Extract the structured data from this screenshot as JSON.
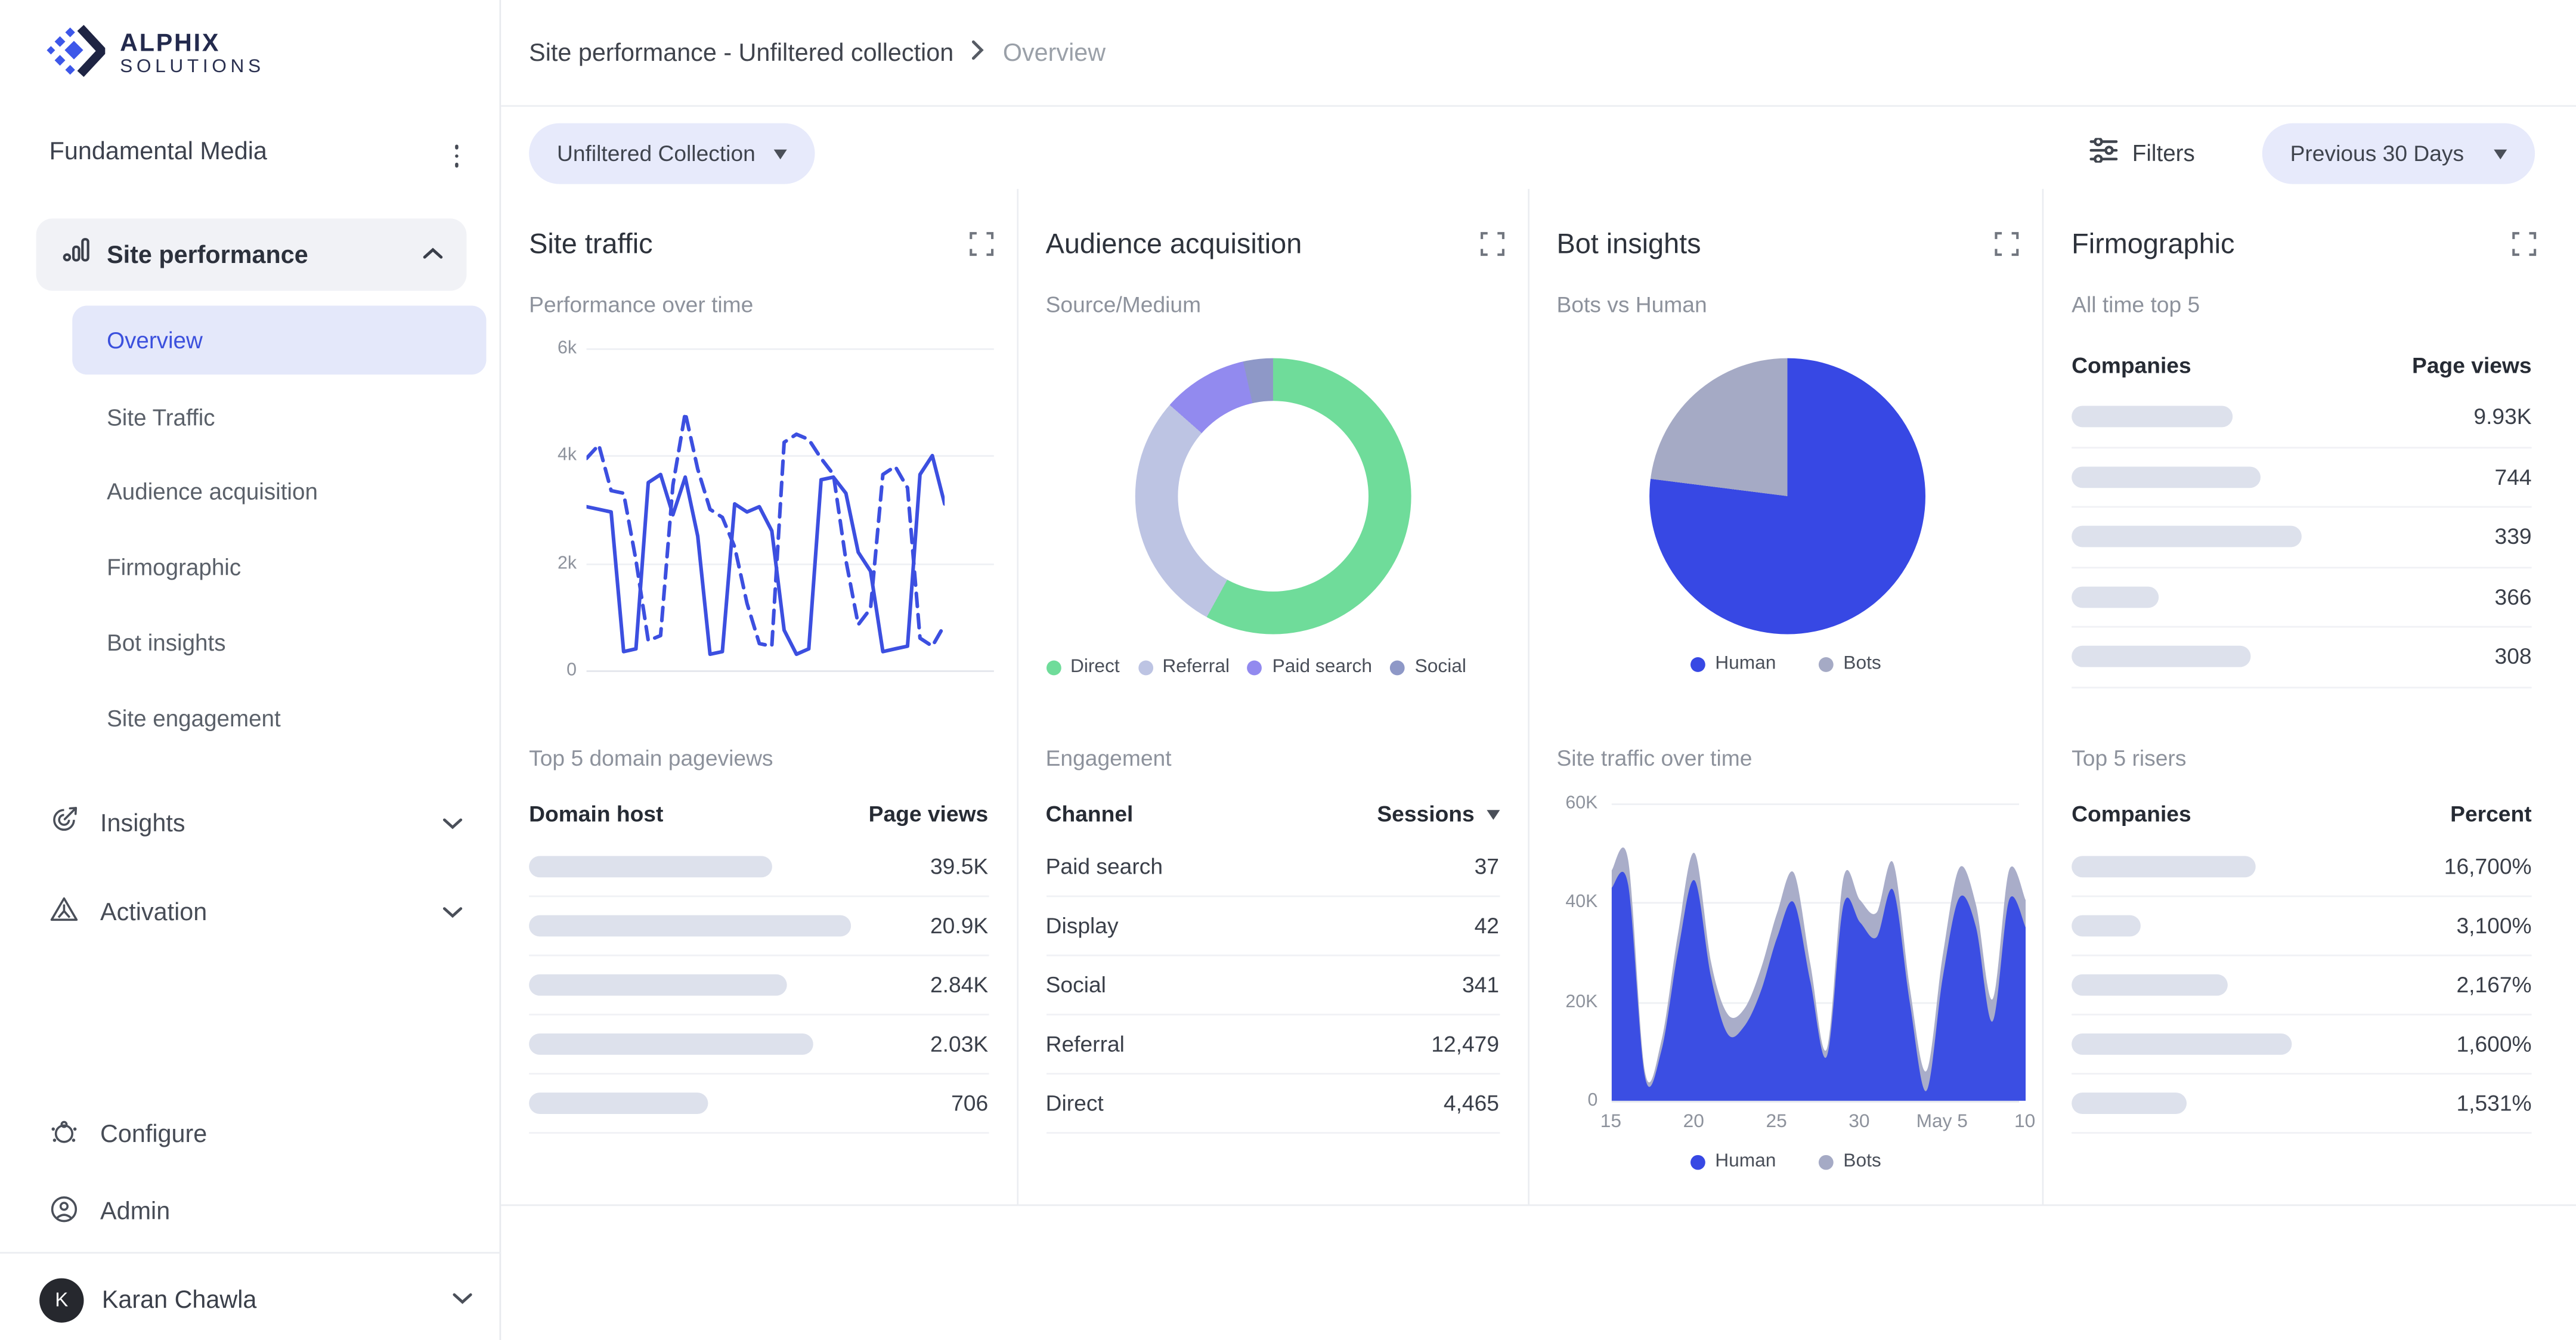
{
  "brand": {
    "line1": "ALPHIX",
    "line2": "SOLUTIONS"
  },
  "breadcrumb": {
    "primary": "Site performance - Unfiltered collection",
    "current": "Overview"
  },
  "toolbar": {
    "collection_selector": "Unfiltered Collection",
    "filters_label": "Filters",
    "date_range": "Previous 30 Days"
  },
  "sidebar": {
    "workspace": "Fundamental Media",
    "group_label": "Site performance",
    "sub_items": [
      {
        "label": "Overview",
        "selected": true
      },
      {
        "label": "Site Traffic"
      },
      {
        "label": "Audience acquisition"
      },
      {
        "label": "Firmographic"
      },
      {
        "label": "Bot insights"
      },
      {
        "label": "Site engagement"
      }
    ],
    "sections": [
      {
        "label": "Insights"
      },
      {
        "label": "Activation"
      }
    ],
    "footer_items": [
      {
        "label": "Configure"
      },
      {
        "label": "Admin"
      }
    ],
    "user": {
      "initial": "K",
      "name": "Karan Chawla"
    }
  },
  "panels": {
    "site_traffic": {
      "title": "Site traffic",
      "subtitle": "Performance over time",
      "section2_title": "Top 5 domain pageviews",
      "table": {
        "col_left": "Domain host",
        "col_right": "Page views",
        "rows": [
          {
            "bar_pct": 53,
            "value": "39.5K"
          },
          {
            "bar_pct": 70,
            "value": "20.9K"
          },
          {
            "bar_pct": 56,
            "value": "2.84K"
          },
          {
            "bar_pct": 62,
            "value": "2.03K"
          },
          {
            "bar_pct": 39,
            "value": "706"
          }
        ]
      }
    },
    "audience_acquisition": {
      "title": "Audience acquisition",
      "subtitle": "Source/Medium",
      "section2_title": "Engagement",
      "table": {
        "col_left": "Channel",
        "col_right": "Sessions",
        "rows": [
          {
            "label": "Paid search",
            "value": "37"
          },
          {
            "label": "Display",
            "value": "42"
          },
          {
            "label": "Social",
            "value": "341"
          },
          {
            "label": "Referral",
            "value": "12,479"
          },
          {
            "label": "Direct",
            "value": "4,465"
          }
        ]
      }
    },
    "bot_insights": {
      "title": "Bot insights",
      "subtitle": "Bots vs Human",
      "section2_title": "Site traffic over time"
    },
    "firmographic": {
      "title": "Firmographic",
      "subtitle": "All time top 5",
      "table_top": {
        "col_left": "Companies",
        "col_right": "Page views",
        "rows": [
          {
            "bar_pct": 35,
            "value": "9.93K"
          },
          {
            "bar_pct": 41,
            "value": "744"
          },
          {
            "bar_pct": 50,
            "value": "339"
          },
          {
            "bar_pct": 19,
            "value": "366"
          },
          {
            "bar_pct": 39,
            "value": "308"
          }
        ]
      },
      "section2_title": "Top 5 risers",
      "table_bottom": {
        "col_left": "Companies",
        "col_right": "Percent",
        "rows": [
          {
            "bar_pct": 40,
            "value": "16,700%"
          },
          {
            "bar_pct": 15,
            "value": "3,100%"
          },
          {
            "bar_pct": 34,
            "value": "2,167%"
          },
          {
            "bar_pct": 48,
            "value": "1,600%"
          },
          {
            "bar_pct": 25,
            "value": "1,531%"
          }
        ]
      }
    }
  },
  "colors": {
    "accent_blue": "#3c4fe0",
    "selected_bg": "#e4e8fa",
    "pill_bg": "#e7eafb",
    "redacted_bar": "#dde1ec",
    "border": "#ebedf1"
  },
  "chart_data": [
    {
      "type": "line",
      "title": "Performance over time",
      "panel": "Site traffic",
      "ylim": [
        0,
        6000
      ],
      "yticks": [
        "6k",
        "4k",
        "2k",
        "0"
      ],
      "grid": true,
      "color": "#3c4fe0",
      "series": [
        {
          "name": "series-solid",
          "style": "solid",
          "values": [
            3050,
            3000,
            2950,
            350,
            400,
            3500,
            3650,
            2900,
            3600,
            2500,
            300,
            350,
            3100,
            2950,
            3050,
            2600,
            750,
            300,
            400,
            3550,
            3600,
            3300,
            2200,
            1850,
            350,
            400,
            450,
            3650,
            4000,
            3100
          ]
        },
        {
          "name": "series-dashed",
          "style": "dashed",
          "values": [
            3950,
            4200,
            3350,
            3300,
            2050,
            550,
            650,
            3450,
            4800,
            3750,
            3000,
            2850,
            2300,
            1250,
            500,
            450,
            4250,
            4400,
            4300,
            3950,
            3650,
            2050,
            850,
            1150,
            3650,
            3800,
            3400,
            600,
            450,
            850
          ]
        }
      ]
    },
    {
      "type": "pie",
      "variant": "donut",
      "title": "Source/Medium",
      "panel": "Audience acquisition",
      "slices": [
        {
          "label": "Direct",
          "pct": 58,
          "color": "#6fdc9a"
        },
        {
          "label": "Referral",
          "pct": 28.5,
          "color": "#bdc4e3"
        },
        {
          "label": "Paid search",
          "pct": 10,
          "color": "#928aef"
        },
        {
          "label": "Social",
          "pct": 3.5,
          "color": "#8e98c7"
        }
      ],
      "legend_position": "bottom"
    },
    {
      "type": "pie",
      "title": "Bots vs Human",
      "panel": "Bot insights",
      "slices": [
        {
          "label": "Human",
          "pct": 77,
          "color": "#3748e4"
        },
        {
          "label": "Bots",
          "pct": 23,
          "color": "#a5aac5"
        }
      ],
      "legend_position": "bottom"
    },
    {
      "type": "area",
      "stacked": true,
      "title": "Site traffic over time",
      "panel": "Bot insights",
      "ylim": [
        0,
        60000
      ],
      "yticks": [
        "60K",
        "40K",
        "20K",
        "0"
      ],
      "xticks": [
        "15",
        "20",
        "25",
        "30",
        "May 5",
        "10"
      ],
      "x": [
        "Apr 15",
        "Apr 16",
        "Apr 17",
        "Apr 18",
        "Apr 19",
        "Apr 20",
        "Apr 21",
        "Apr 22",
        "Apr 23",
        "Apr 24",
        "Apr 25",
        "Apr 26",
        "Apr 27",
        "Apr 28",
        "Apr 29",
        "Apr 30",
        "May 1",
        "May 2",
        "May 3",
        "May 4",
        "May 5",
        "May 6",
        "May 7",
        "May 8",
        "May 9",
        "May 10"
      ],
      "series": [
        {
          "name": "Human",
          "color": "#3b4ee3",
          "values": [
            43000,
            43500,
            5000,
            10000,
            30000,
            44500,
            25000,
            13500,
            15000,
            22000,
            33000,
            40000,
            24000,
            9000,
            39500,
            36000,
            33000,
            42500,
            20000,
            2000,
            25000,
            41000,
            35000,
            16000,
            40500,
            35000
          ]
        },
        {
          "name": "Bots",
          "color": "#a9adc9",
          "values": [
            3500,
            5000,
            1000,
            2000,
            3500,
            5500,
            3000,
            4000,
            3500,
            4500,
            5000,
            6000,
            3500,
            1500,
            5500,
            4500,
            5000,
            5500,
            3000,
            4000,
            4500,
            6000,
            4500,
            4500,
            6000,
            5500
          ]
        }
      ],
      "legend": [
        {
          "label": "Human",
          "color": "#3748e4"
        },
        {
          "label": "Bots",
          "color": "#a5aac5"
        }
      ]
    }
  ]
}
